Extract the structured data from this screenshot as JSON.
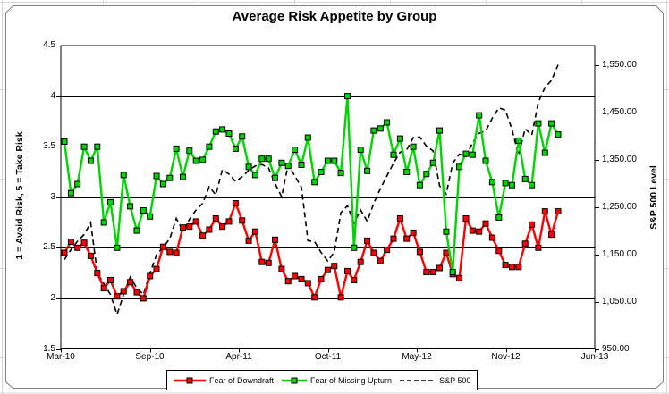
{
  "window": {
    "background": "#ffffff",
    "chart_border_color": "#808080",
    "worksheet_gridline_color": "#d6d6d6"
  },
  "chart": {
    "title": "Average Risk Appetite by Group",
    "left_axis": {
      "title": "1 = Avoid Risk, 5 = Take Risk",
      "tick_labels": [
        "4.5",
        "4",
        "3.5",
        "3",
        "2.5",
        "2",
        "1.5"
      ]
    },
    "right_axis": {
      "title": "S&P 500 Level",
      "tick_labels": [
        "1,550.00",
        "1,450.00",
        "1,350.00",
        "1,250.00",
        "1,150.00",
        "1,050.00",
        "950.00"
      ]
    },
    "x_axis": {
      "tick_labels": [
        "Mar-10",
        "Sep-10",
        "Apr-11",
        "Oct-11",
        "May-12",
        "Nov-12",
        "Jun-13"
      ]
    }
  },
  "chart_data": {
    "type": "line",
    "title": "Average Risk Appetite by Group",
    "xlabel": "",
    "ylabel_left": "1 = Avoid Risk, 5 = Take Risk",
    "ylabel_right": "S&P 500 Level",
    "x_tick_labels": [
      "Mar-10",
      "Sep-10",
      "Apr-11",
      "Oct-11",
      "May-12",
      "Nov-12",
      "Jun-13"
    ],
    "x_note": "biweekly observations, Mar-2010 through Mar-2013",
    "left_ylim": [
      1.5,
      4.5
    ],
    "right_ylim": [
      950,
      1550
    ],
    "gridline_values_left": [
      2,
      2.5,
      3,
      3.5,
      4
    ],
    "legend_position": "bottom",
    "series": [
      {
        "name": "Fear of Downdraft",
        "axis": "left",
        "color": "#ff0000",
        "marker": "square",
        "line": "solid",
        "values": [
          2.45,
          2.56,
          2.5,
          2.55,
          2.42,
          2.25,
          2.1,
          2.18,
          2.02,
          2.07,
          2.16,
          2.06,
          2.0,
          2.22,
          2.29,
          2.51,
          2.46,
          2.45,
          2.7,
          2.71,
          2.76,
          2.62,
          2.68,
          2.79,
          2.71,
          2.76,
          2.94,
          2.77,
          2.57,
          2.66,
          2.36,
          2.35,
          2.58,
          2.29,
          2.17,
          2.22,
          2.19,
          2.15,
          2.01,
          2.19,
          2.28,
          2.32,
          2.01,
          2.27,
          2.18,
          2.36,
          2.57,
          2.45,
          2.37,
          2.48,
          2.59,
          2.79,
          2.59,
          2.65,
          2.46,
          2.26,
          2.26,
          2.3,
          2.45,
          2.24,
          2.2,
          2.79,
          2.67,
          2.66,
          2.74,
          2.6,
          2.47,
          2.33,
          2.31,
          2.31,
          2.54,
          2.73,
          2.5,
          2.86,
          2.63,
          2.86
        ]
      },
      {
        "name": "Fear of Missing Upturn",
        "axis": "left",
        "color": "#00d400",
        "marker": "square",
        "line": "solid",
        "values": [
          3.55,
          3.04,
          3.13,
          3.5,
          3.36,
          3.5,
          2.75,
          2.95,
          2.5,
          3.22,
          2.91,
          2.67,
          2.87,
          2.81,
          3.21,
          3.13,
          3.19,
          3.48,
          3.2,
          3.46,
          3.36,
          3.37,
          3.5,
          3.65,
          3.67,
          3.63,
          3.48,
          3.6,
          3.3,
          3.22,
          3.38,
          3.38,
          3.19,
          3.34,
          3.31,
          3.47,
          3.32,
          3.59,
          3.15,
          3.25,
          3.36,
          3.36,
          3.24,
          4.0,
          2.5,
          3.47,
          3.26,
          3.66,
          3.68,
          3.74,
          3.42,
          3.58,
          3.25,
          3.5,
          3.12,
          3.23,
          3.34,
          3.66,
          2.66,
          2.26,
          3.3,
          3.43,
          3.42,
          3.81,
          3.36,
          3.15,
          2.8,
          3.14,
          3.12,
          3.56,
          3.18,
          3.12,
          3.73,
          3.44,
          3.73,
          3.62
        ]
      },
      {
        "name": "S&P 500",
        "axis": "right",
        "color": "#000000",
        "marker": "none",
        "line": "dashed",
        "values": [
          1139,
          1160,
          1178,
          1192,
          1217,
          1111,
          1088,
          1065,
          1023,
          1065,
          1102,
          1079,
          1065,
          1110,
          1149,
          1165,
          1183,
          1226,
          1200,
          1224,
          1244,
          1258,
          1293,
          1276,
          1329,
          1320,
          1304,
          1314,
          1328,
          1337,
          1340,
          1333,
          1300,
          1272,
          1340,
          1316,
          1292,
          1179,
          1177,
          1154,
          1136,
          1155,
          1238,
          1253,
          1216,
          1244,
          1220,
          1258,
          1289,
          1316,
          1343,
          1366,
          1371,
          1397,
          1398,
          1379,
          1369,
          1295,
          1278,
          1343,
          1362,
          1357,
          1386,
          1406,
          1411,
          1438,
          1460,
          1455,
          1414,
          1360,
          1416,
          1402,
          1472,
          1503,
          1518,
          1551
        ]
      }
    ]
  }
}
